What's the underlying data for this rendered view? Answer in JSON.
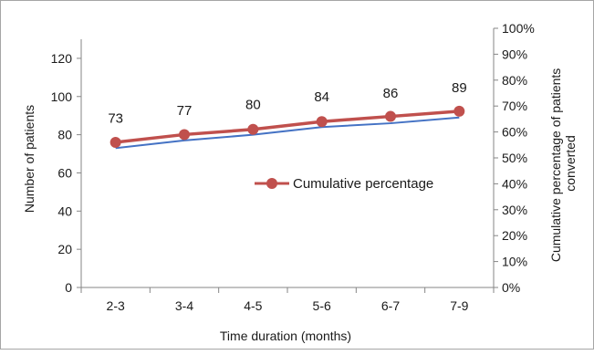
{
  "chart_data": {
    "type": "line",
    "categories": [
      "2-3",
      "3-4",
      "4-5",
      "5-6",
      "6-7",
      "7-9"
    ],
    "series": [
      {
        "axis": "left",
        "color": "#4472c4",
        "values": [
          73,
          77,
          80,
          84,
          86,
          89
        ],
        "data_labels": [
          "73",
          "77",
          "80",
          "84",
          "86",
          "89"
        ]
      },
      {
        "name": "Cumulative percentage",
        "axis": "right",
        "color": "#c0504d",
        "marker": "circle",
        "values": [
          56,
          59,
          61,
          64,
          66,
          68
        ]
      }
    ],
    "xlabel": "Time duration  (months)",
    "ylabel": "Number of patients",
    "y2label": "Cumulative percentage of patients converted",
    "ylim": [
      0,
      130
    ],
    "yticks": [
      "0",
      "20",
      "40",
      "60",
      "80",
      "100",
      "120"
    ],
    "y2lim": [
      0,
      100
    ],
    "y2ticks": [
      "0%",
      "10%",
      "20%",
      "30%",
      "40%",
      "50%",
      "60%",
      "70%",
      "80%",
      "90%",
      "100%"
    ],
    "grid": false,
    "legend": "center-right"
  }
}
